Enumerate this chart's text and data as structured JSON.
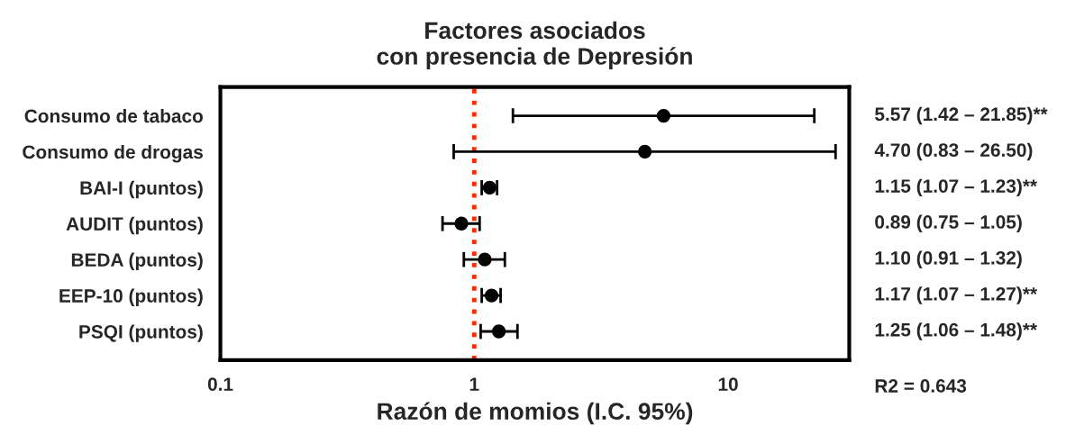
{
  "chart_data": {
    "type": "scatter",
    "orientation": "horizontal",
    "title": "Factores asociados\ncon presencia de Depresión",
    "xlabel": "Razón de momios (I.C. 95%)",
    "categories": [
      "Consumo de tabaco",
      "Consumo de drogas",
      "BAI-I (puntos)",
      "AUDIT (puntos)",
      "BEDA (puntos)",
      "EEP-10 (puntos)",
      "PSQI (puntos)"
    ],
    "values": [
      5.57,
      4.7,
      1.15,
      0.89,
      1.1,
      1.17,
      1.25
    ],
    "errors": [
      [
        1.42,
        21.85
      ],
      [
        0.83,
        26.5
      ],
      [
        1.07,
        1.23
      ],
      [
        0.75,
        1.05
      ],
      [
        0.91,
        1.32
      ],
      [
        1.07,
        1.27
      ],
      [
        1.06,
        1.48
      ]
    ],
    "color": "#000000",
    "marker": "circle",
    "log": "x",
    "xlim": [
      0.1,
      30
    ],
    "xticks": [
      0.1,
      1,
      10
    ],
    "ref_lines": [
      {
        "axis": "x",
        "value": 1,
        "color": "#ff2a00",
        "line_style": "dotted"
      }
    ],
    "annotations": [
      "5.57 (1.42 – 21.85)**",
      "4.70 (0.83 – 26.50)",
      "1.15 (1.07 – 1.23)**",
      "0.89 (0.75 – 1.05)",
      "1.10 (0.91 – 1.32)",
      "1.17 (1.07 – 1.27)**",
      "1.25 (1.06 – 1.48)**",
      "R2 = 0.643"
    ],
    "grid": false,
    "legend": false
  }
}
